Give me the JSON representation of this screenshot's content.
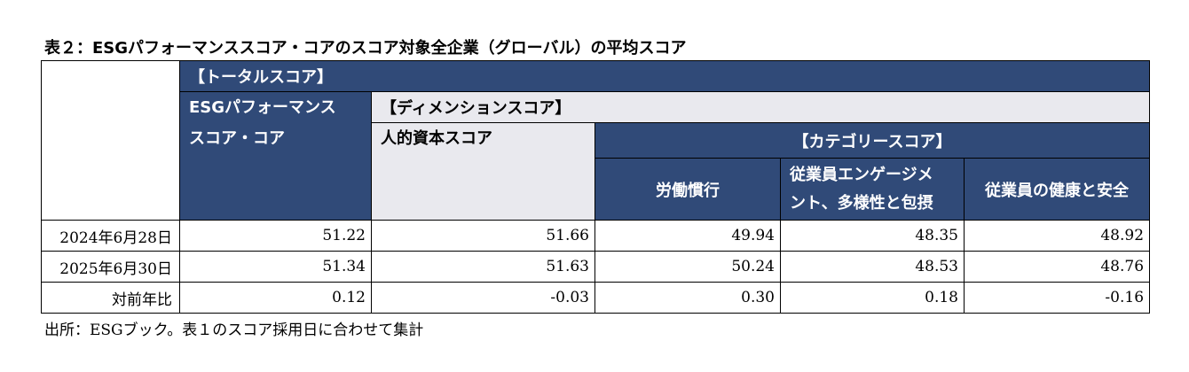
{
  "title": "表２：ESGパフォーマンススコア・コアのスコア対象全企業（グローバル）の平均スコア",
  "header": {
    "total": "【トータルスコア】",
    "core_line1": "ESGパフォーマンス",
    "core_line2": "スコア・コア",
    "dimension": "【ディメンションスコア】",
    "human": "人的資本スコア",
    "category": "【カテゴリースコア】",
    "labor": "労働慣行",
    "engage_line1": "従業員エンゲージメ",
    "engage_line2": "ント、多様性と包摂",
    "health": "従業員の健康と安全"
  },
  "rows": [
    {
      "label": "2024年6月28日",
      "core": "51.22",
      "human": "51.66",
      "labor": "49.94",
      "engage": "48.35",
      "health": "48.92"
    },
    {
      "label": "2025年6月30日",
      "core": "51.34",
      "human": "51.63",
      "labor": "50.24",
      "engage": "48.53",
      "health": "48.76"
    },
    {
      "label": "対前年比",
      "core": "0.12",
      "human": "-0.03",
      "labor": "0.30",
      "engage": "0.18",
      "health": "-0.16"
    }
  ],
  "footnote": "出所：ESGブック。表１のスコア採用日に合わせて集計",
  "colors": {
    "header_navy": "#304a78",
    "header_gray": "#e9e9ee"
  }
}
